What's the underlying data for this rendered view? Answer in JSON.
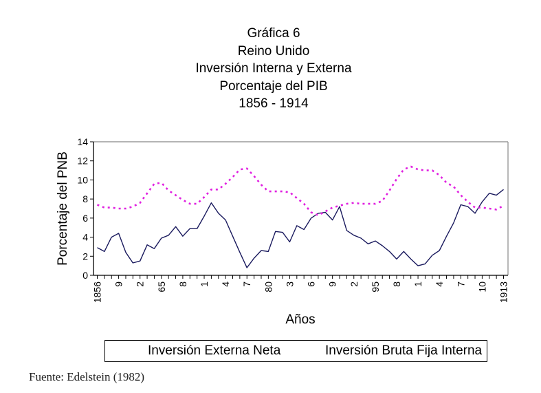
{
  "chart_data": {
    "type": "line",
    "title": [
      "Gráfica 6",
      "Reino Unido",
      "Inversión Interna y Externa",
      "Porcentaje del PIB",
      "1856 - 1914"
    ],
    "xlabel": "Años",
    "ylabel": "Porcentaje del PNB",
    "ylim": [
      0,
      14
    ],
    "yticks": [
      0,
      2,
      4,
      6,
      8,
      10,
      12,
      14
    ],
    "xlim": [
      1856,
      1913
    ],
    "x": [
      1856,
      1857,
      1858,
      1859,
      1860,
      1861,
      1862,
      1863,
      1864,
      1865,
      1866,
      1867,
      1868,
      1869,
      1870,
      1871,
      1872,
      1873,
      1874,
      1875,
      1876,
      1877,
      1878,
      1879,
      1880,
      1881,
      1882,
      1883,
      1884,
      1885,
      1886,
      1887,
      1888,
      1889,
      1890,
      1891,
      1892,
      1893,
      1894,
      1895,
      1896,
      1897,
      1898,
      1899,
      1900,
      1901,
      1902,
      1903,
      1904,
      1905,
      1906,
      1907,
      1908,
      1909,
      1910,
      1911,
      1912,
      1913
    ],
    "xtick_labels": [
      {
        "year": 1856,
        "label": "1856"
      },
      {
        "year": 1859,
        "label": "9"
      },
      {
        "year": 1862,
        "label": "2"
      },
      {
        "year": 1865,
        "label": "65"
      },
      {
        "year": 1868,
        "label": "8"
      },
      {
        "year": 1871,
        "label": "1"
      },
      {
        "year": 1874,
        "label": "4"
      },
      {
        "year": 1877,
        "label": "7"
      },
      {
        "year": 1880,
        "label": "80"
      },
      {
        "year": 1883,
        "label": "3"
      },
      {
        "year": 1886,
        "label": "6"
      },
      {
        "year": 1889,
        "label": "9"
      },
      {
        "year": 1892,
        "label": "2"
      },
      {
        "year": 1895,
        "label": "95"
      },
      {
        "year": 1898,
        "label": "8"
      },
      {
        "year": 1901,
        "label": "1"
      },
      {
        "year": 1904,
        "label": "4"
      },
      {
        "year": 1907,
        "label": "7"
      },
      {
        "year": 1910,
        "label": "10"
      },
      {
        "year": 1913,
        "label": "1913"
      }
    ],
    "grid": false,
    "legend_position": "bottom",
    "series": [
      {
        "name": "Inversión Externa Neta",
        "color": "#1a1a5e",
        "style": "solid",
        "values": [
          2.9,
          2.5,
          4.0,
          4.4,
          2.4,
          1.3,
          1.5,
          3.2,
          2.8,
          3.9,
          4.2,
          5.1,
          4.1,
          4.9,
          4.9,
          6.2,
          7.6,
          6.5,
          5.8,
          4.1,
          2.4,
          0.8,
          1.8,
          2.6,
          2.5,
          4.6,
          4.5,
          3.5,
          5.2,
          4.8,
          6.0,
          6.5,
          6.6,
          5.8,
          7.2,
          4.7,
          4.2,
          3.9,
          3.3,
          3.6,
          3.1,
          2.5,
          1.7,
          2.5,
          1.7,
          1.0,
          1.2,
          2.1,
          2.6,
          4.1,
          5.5,
          7.4,
          7.2,
          6.5,
          7.7,
          8.6,
          8.4,
          9.0
        ]
      },
      {
        "name": "Inversión Bruta Fija Interna",
        "color": "#e020e0",
        "style": "dotted",
        "values": [
          7.4,
          7.1,
          7.1,
          7.0,
          7.0,
          7.2,
          7.6,
          8.6,
          9.6,
          9.7,
          8.9,
          8.4,
          7.9,
          7.5,
          7.5,
          8.2,
          9.0,
          9.0,
          9.6,
          10.3,
          11.1,
          11.2,
          10.4,
          9.5,
          8.8,
          8.8,
          8.8,
          8.7,
          8.1,
          7.5,
          6.6,
          6.3,
          6.7,
          7.1,
          7.3,
          7.5,
          7.6,
          7.5,
          7.5,
          7.5,
          7.8,
          8.9,
          10.1,
          11.1,
          11.4,
          11.1,
          11.0,
          11.0,
          10.5,
          9.7,
          9.3,
          8.4,
          7.7,
          7.1,
          7.1,
          7.0,
          6.9,
          7.3
        ]
      }
    ]
  },
  "source_note": "Fuente: Edelstein (1982)"
}
